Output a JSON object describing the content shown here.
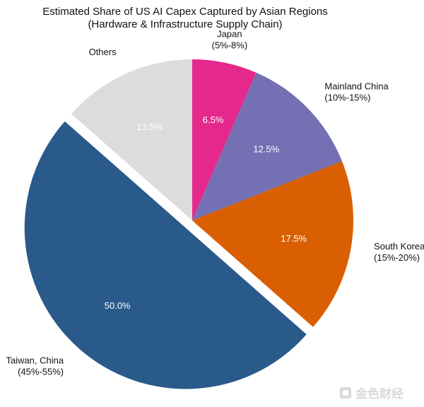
{
  "chart_data": {
    "type": "pie",
    "title": "Estimated Share of US AI Capex Captured by Asian Regions",
    "subtitle": "(Hardware & Infrastructure Supply Chain)",
    "slices": [
      {
        "label": "Japan",
        "range": "(5%-8%)",
        "value": 6.5,
        "value_label": "6.5%",
        "color": "#e5288c"
      },
      {
        "label": "Mainland China",
        "range": "(10%-15%)",
        "value": 12.5,
        "value_label": "12.5%",
        "color": "#7570b3"
      },
      {
        "label": "South Korea",
        "range": "(15%-20%)",
        "value": 17.5,
        "value_label": "17.5%",
        "color": "#d95f02"
      },
      {
        "label": "Taiwan, China",
        "range": "(45%-55%)",
        "value": 50.0,
        "value_label": "50.0%",
        "color": "#2a5a8a",
        "exploded": true
      },
      {
        "label": "Others",
        "range": "",
        "value": 13.5,
        "value_label": "13.5%",
        "color": "#dcdcdc"
      }
    ],
    "start_angle_deg": 90,
    "direction": "clockwise"
  },
  "watermark": {
    "text": "金色财经",
    "color": "#d9d9d9"
  }
}
